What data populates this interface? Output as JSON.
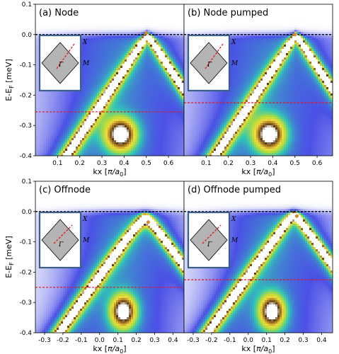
{
  "figure": {
    "ylabel_prefix": "E-E",
    "ylabel_sub": "F",
    "ylabel_suffix": " [meV]",
    "xlabel_prefix": "kx [",
    "xlabel_pi": "π/a",
    "xlabel_sub": "0",
    "xlabel_suffix": "]",
    "colors": {
      "fermi_line": "#000000",
      "dashed_red": "#e8141c",
      "bz_frame": "#3a5f8a",
      "bz_fill": "#b4b4b4",
      "marker": "#d4892a",
      "colormap": [
        "#ffffff",
        "#4b50e6",
        "#31c8b4",
        "#b4dc3c",
        "#f0dc3c",
        "#b4842a",
        "#5a3a14",
        "#ffffff"
      ]
    },
    "bz_labels": {
      "center": "Γ",
      "x": "X",
      "m": "M"
    }
  },
  "chart_data": [
    {
      "type": "heatmap",
      "title": "(a) Node",
      "xlim": [
        0.0,
        0.67
      ],
      "ylim": [
        -0.4,
        0.1
      ],
      "xticks": [
        0.1,
        0.2,
        0.3,
        0.4,
        0.5,
        0.6
      ],
      "yticks": [
        -0.4,
        -0.3,
        -0.2,
        -0.1,
        0.0,
        0.1
      ],
      "band": {
        "kF": 0.505,
        "slope": 1.1,
        "gap": 0.0
      },
      "fermi_level": 0.0,
      "red_line": -0.255,
      "marker": [
        0.5,
        0.005
      ],
      "grid": false
    },
    {
      "type": "heatmap",
      "title": "(b) Node pumped",
      "xlim": [
        0.0,
        0.67
      ],
      "ylim": [
        -0.4,
        0.1
      ],
      "xticks": [
        0.1,
        0.2,
        0.3,
        0.4,
        0.5,
        0.6
      ],
      "yticks": [],
      "band": {
        "kF": 0.505,
        "slope": 1.1,
        "gap": 0.0
      },
      "fermi_level": 0.0,
      "red_line": -0.225,
      "marker": [
        0.5,
        0.0
      ],
      "grid": false
    },
    {
      "type": "heatmap",
      "title": "(c) Offnode",
      "xlim": [
        -0.35,
        0.46
      ],
      "ylim": [
        -0.4,
        0.1
      ],
      "xticks": [
        -0.3,
        -0.2,
        -0.1,
        0.0,
        0.1,
        0.2,
        0.3,
        0.4
      ],
      "yticks": [
        -0.4,
        -0.3,
        -0.2,
        -0.1,
        0.0,
        0.1
      ],
      "band": {
        "kF": 0.25,
        "slope": 0.85,
        "gap": 0.025
      },
      "fermi_level": 0.0,
      "red_line": -0.25,
      "marker": [
        0.265,
        -0.035
      ],
      "grid": false
    },
    {
      "type": "heatmap",
      "title": "(d) Offnode pumped",
      "xlim": [
        -0.35,
        0.46
      ],
      "ylim": [
        -0.4,
        0.1
      ],
      "xticks": [
        -0.3,
        -0.2,
        -0.1,
        0.0,
        0.1,
        0.2,
        0.3,
        0.4
      ],
      "yticks": [],
      "band": {
        "kF": 0.25,
        "slope": 0.85,
        "gap": 0.012
      },
      "fermi_level": 0.0,
      "red_line": -0.225,
      "marker": [
        0.265,
        -0.015
      ],
      "grid": false
    }
  ]
}
